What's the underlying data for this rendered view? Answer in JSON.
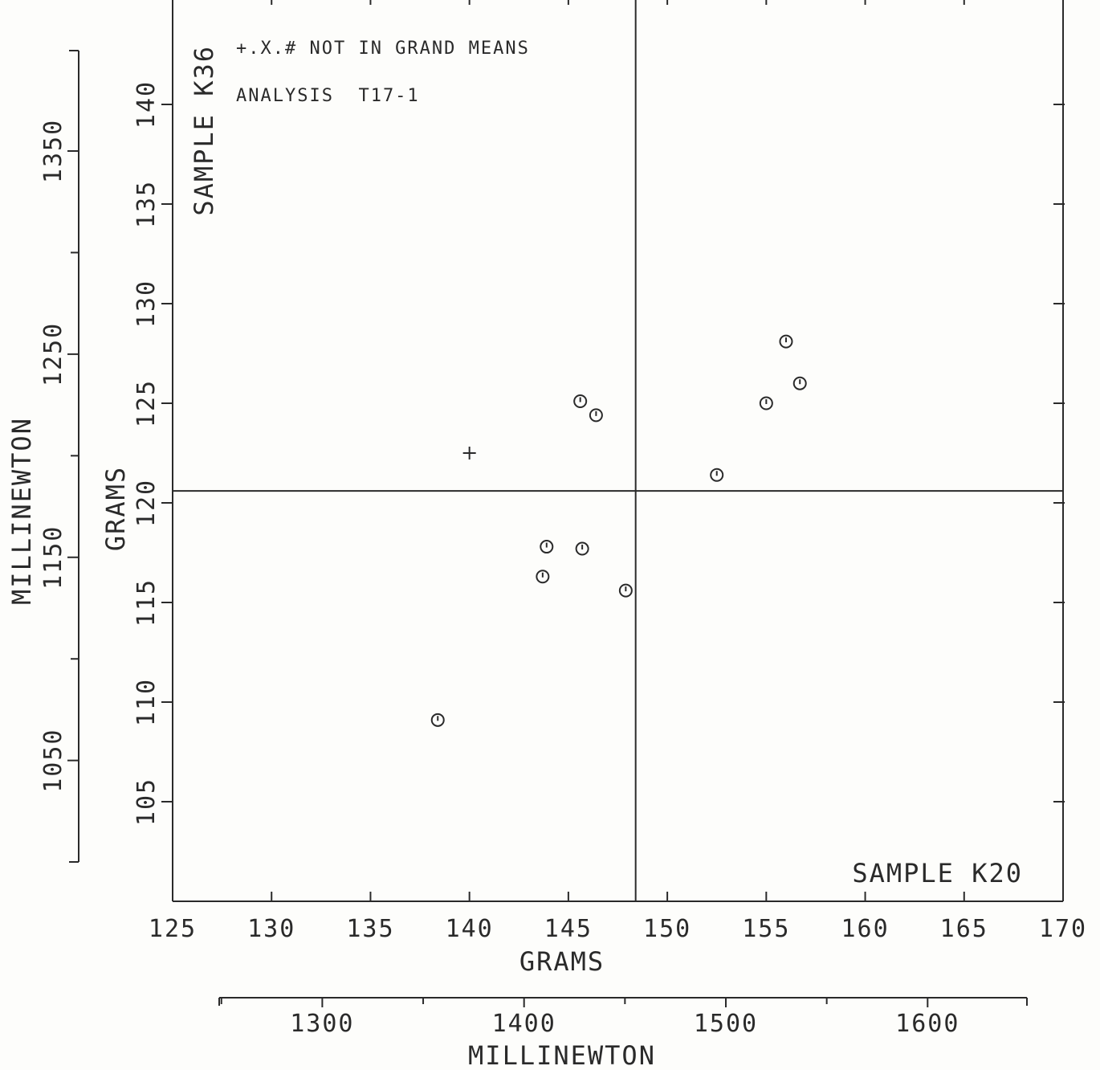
{
  "chart_data": {
    "type": "scatter",
    "xlabel": "GRAMS",
    "ylabel": "GRAMS",
    "secondary_xlabel": "MILLINEWTON",
    "secondary_ylabel": "MILLINEWTON",
    "x_axis_label_text": "SAMPLE K20",
    "y_axis_label_text": "SAMPLE K36",
    "xlim": [
      125,
      170
    ],
    "ylim": [
      100,
      145
    ],
    "x_ticks": [
      "125",
      "130",
      "135",
      "140",
      "145",
      "150",
      "155",
      "160",
      "165",
      "170"
    ],
    "y_ticks": [
      "105",
      "110",
      "115",
      "120",
      "125",
      "130",
      "135",
      "140"
    ],
    "secondary_x_ticks": [
      "1300",
      "1400",
      "1500",
      "1600"
    ],
    "secondary_y_ticks": [
      "1050",
      "1150",
      "1250",
      "1350"
    ],
    "legend_note": "+.X.# NOT IN GRAND MEANS",
    "analysis_note": "ANALYSIS  T17-1",
    "reference_lines": {
      "x": 148.4,
      "y": 120.6
    },
    "series": [
      {
        "marker": "circle",
        "points": [
          {
            "x": 145.6,
            "y": 125.1
          },
          {
            "x": 146.4,
            "y": 124.4
          },
          {
            "x": 156.0,
            "y": 128.1
          },
          {
            "x": 156.7,
            "y": 126.0
          },
          {
            "x": 155.0,
            "y": 125.0
          },
          {
            "x": 152.5,
            "y": 121.4
          },
          {
            "x": 143.9,
            "y": 117.8
          },
          {
            "x": 145.7,
            "y": 117.7
          },
          {
            "x": 143.7,
            "y": 116.3
          },
          {
            "x": 147.9,
            "y": 115.6
          },
          {
            "x": 138.4,
            "y": 109.1
          }
        ]
      },
      {
        "marker": "plus",
        "points": [
          {
            "x": 140.0,
            "y": 122.5
          }
        ]
      }
    ]
  }
}
